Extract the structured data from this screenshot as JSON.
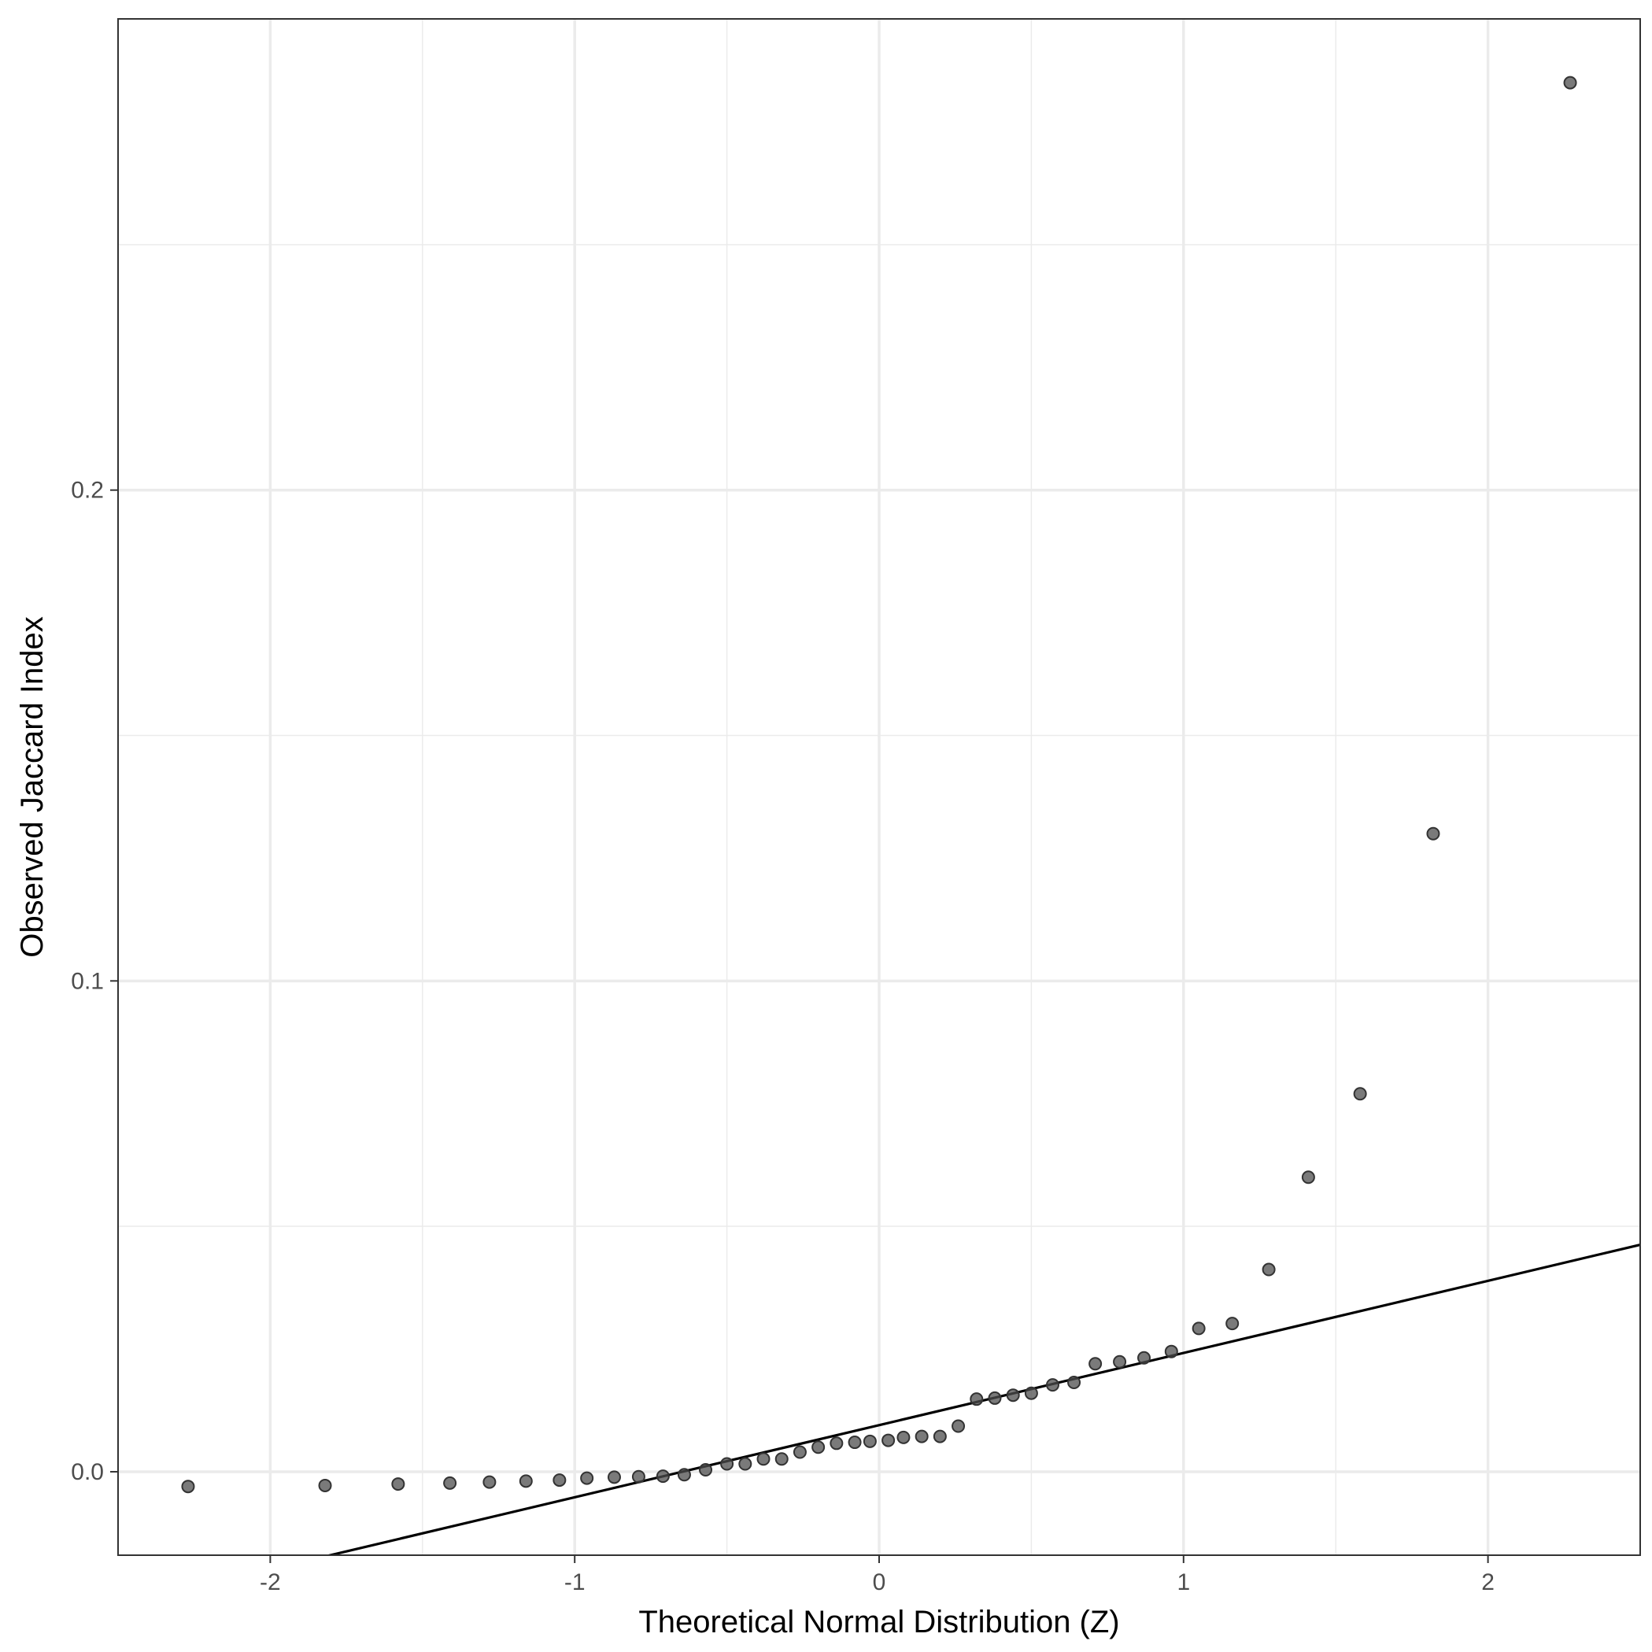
{
  "chart_data": {
    "type": "scatter",
    "title": "",
    "xlabel": "Theoretical Normal Distribution (Z)",
    "ylabel": "Observed Jaccard Index",
    "xlim": [
      -2.5,
      2.5
    ],
    "ylim": [
      -0.017,
      0.296
    ],
    "x_ticks": [
      -2,
      -1,
      0,
      1,
      2
    ],
    "x_tick_labels": [
      "-2",
      "-1",
      "0",
      "1",
      "2"
    ],
    "y_ticks": [
      0.0,
      0.1,
      0.2
    ],
    "y_tick_labels": [
      "0.0",
      "0.1",
      "0.2"
    ],
    "x_minor_ticks": [
      -1.5,
      -0.5,
      0.5,
      1.5
    ],
    "y_minor_ticks": [
      0.05,
      0.15,
      0.25
    ],
    "grid": true,
    "legend": "none",
    "point_color": "#4d4d4d",
    "point_stroke": "#333333",
    "line_color": "#000000",
    "points": [
      {
        "x": -2.27,
        "y": -0.003
      },
      {
        "x": -1.82,
        "y": -0.0028
      },
      {
        "x": -1.58,
        "y": -0.0025
      },
      {
        "x": -1.41,
        "y": -0.0023
      },
      {
        "x": -1.28,
        "y": -0.0021
      },
      {
        "x": -1.16,
        "y": -0.0019
      },
      {
        "x": -1.05,
        "y": -0.0017
      },
      {
        "x": -0.96,
        "y": -0.0013
      },
      {
        "x": -0.87,
        "y": -0.0011
      },
      {
        "x": -0.79,
        "y": -0.001
      },
      {
        "x": -0.71,
        "y": -0.0009
      },
      {
        "x": -0.64,
        "y": -0.0006
      },
      {
        "x": -0.57,
        "y": 0.0004
      },
      {
        "x": -0.5,
        "y": 0.0016
      },
      {
        "x": -0.44,
        "y": 0.0016
      },
      {
        "x": -0.38,
        "y": 0.0026
      },
      {
        "x": -0.32,
        "y": 0.0026
      },
      {
        "x": -0.26,
        "y": 0.004
      },
      {
        "x": -0.2,
        "y": 0.005
      },
      {
        "x": -0.14,
        "y": 0.0058
      },
      {
        "x": -0.08,
        "y": 0.006
      },
      {
        "x": -0.03,
        "y": 0.0062
      },
      {
        "x": 0.03,
        "y": 0.0064
      },
      {
        "x": 0.08,
        "y": 0.007
      },
      {
        "x": 0.14,
        "y": 0.0072
      },
      {
        "x": 0.2,
        "y": 0.0072
      },
      {
        "x": 0.26,
        "y": 0.0093
      },
      {
        "x": 0.32,
        "y": 0.0148
      },
      {
        "x": 0.38,
        "y": 0.015
      },
      {
        "x": 0.44,
        "y": 0.0156
      },
      {
        "x": 0.5,
        "y": 0.016
      },
      {
        "x": 0.57,
        "y": 0.0177
      },
      {
        "x": 0.64,
        "y": 0.0182
      },
      {
        "x": 0.71,
        "y": 0.022
      },
      {
        "x": 0.79,
        "y": 0.0224
      },
      {
        "x": 0.87,
        "y": 0.0232
      },
      {
        "x": 0.96,
        "y": 0.0245
      },
      {
        "x": 1.05,
        "y": 0.0292
      },
      {
        "x": 1.16,
        "y": 0.0302
      },
      {
        "x": 1.28,
        "y": 0.0412
      },
      {
        "x": 1.41,
        "y": 0.06
      },
      {
        "x": 1.58,
        "y": 0.077
      },
      {
        "x": 1.82,
        "y": 0.13
      },
      {
        "x": 2.27,
        "y": 0.283
      }
    ],
    "reference_line": {
      "intercept": 0.0095,
      "slope": 0.0147
    }
  }
}
